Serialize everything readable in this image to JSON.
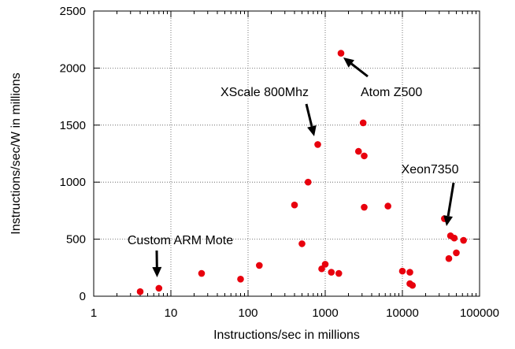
{
  "chart_data": {
    "type": "scatter",
    "x_scale": "log",
    "y_scale": "linear",
    "xlabel": "Instructions/sec in millions",
    "ylabel": "Instructions/sec/W in millions",
    "xlim": [
      1,
      100000
    ],
    "ylim": [
      0,
      2500
    ],
    "x_ticks": [
      1,
      10,
      100,
      1000,
      10000,
      100000
    ],
    "x_tick_labels": [
      "1",
      "10",
      "100",
      "1000",
      "10000",
      "100000"
    ],
    "y_ticks": [
      0,
      500,
      1000,
      1500,
      2000,
      2500
    ],
    "y_tick_labels": [
      "0",
      "500",
      "1000",
      "1500",
      "2000",
      "2500"
    ],
    "grid": true,
    "point_color": "#e8000d",
    "series": [
      {
        "points": [
          {
            "x": 4,
            "y": 40
          },
          {
            "x": 7,
            "y": 70
          },
          {
            "x": 25,
            "y": 200
          },
          {
            "x": 80,
            "y": 150
          },
          {
            "x": 140,
            "y": 270
          },
          {
            "x": 400,
            "y": 800
          },
          {
            "x": 500,
            "y": 460
          },
          {
            "x": 600,
            "y": 1000
          },
          {
            "x": 800,
            "y": 1330
          },
          {
            "x": 900,
            "y": 240
          },
          {
            "x": 1000,
            "y": 280
          },
          {
            "x": 1200,
            "y": 210
          },
          {
            "x": 1500,
            "y": 200
          },
          {
            "x": 1600,
            "y": 2130
          },
          {
            "x": 2700,
            "y": 1270
          },
          {
            "x": 3100,
            "y": 1520
          },
          {
            "x": 3200,
            "y": 1230
          },
          {
            "x": 3200,
            "y": 780
          },
          {
            "x": 6500,
            "y": 790
          },
          {
            "x": 10000,
            "y": 220
          },
          {
            "x": 12500,
            "y": 210
          },
          {
            "x": 12500,
            "y": 110
          },
          {
            "x": 13500,
            "y": 95
          },
          {
            "x": 35000,
            "y": 680
          },
          {
            "x": 40000,
            "y": 330
          },
          {
            "x": 42000,
            "y": 530
          },
          {
            "x": 47000,
            "y": 510
          },
          {
            "x": 50000,
            "y": 380
          },
          {
            "x": 62000,
            "y": 490
          }
        ]
      }
    ],
    "annotations": [
      {
        "text": "Custom ARM Mote",
        "point": {
          "x": 7,
          "y": 70
        }
      },
      {
        "text": "XScale 800Mhz",
        "point": {
          "x": 800,
          "y": 1330
        }
      },
      {
        "text": "Atom Z500",
        "point": {
          "x": 1600,
          "y": 2130
        }
      },
      {
        "text": "Xeon7350",
        "point": {
          "x": 42000,
          "y": 530
        }
      }
    ]
  }
}
